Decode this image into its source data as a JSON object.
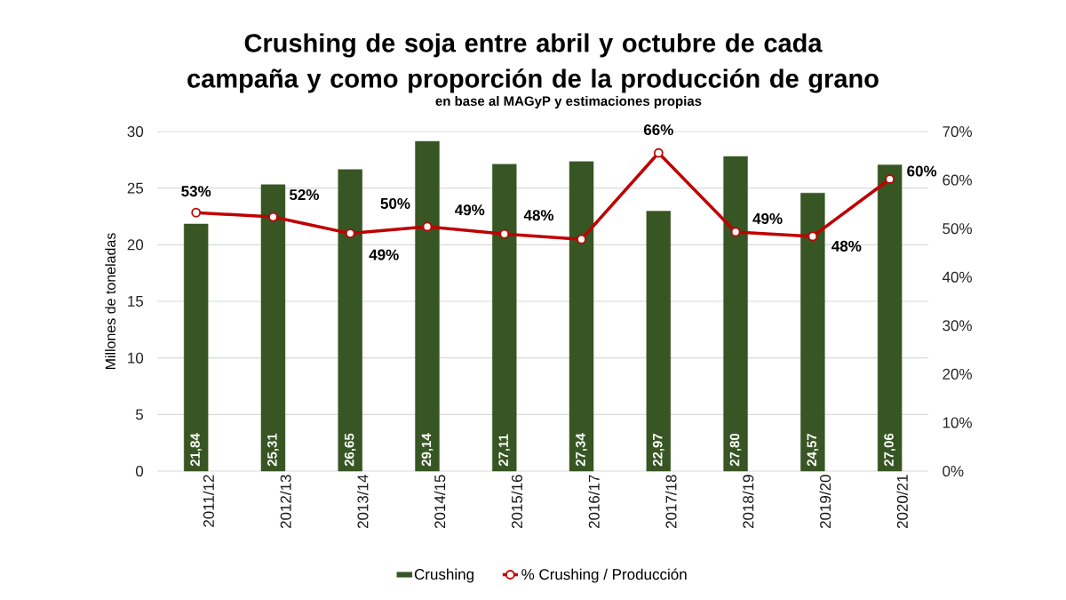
{
  "chart_data": {
    "type": "bar",
    "title": "Crushing de soja entre abril y octubre de cada campaña y como proporción de la producción de grano",
    "annotations": [
      "en base al MAGyP y estimaciones propias"
    ],
    "ylabel": "Millones de toneladas",
    "categories": [
      "2011/12",
      "2012/13",
      "2013/14",
      "2014/15",
      "2015/16",
      "2016/17",
      "2017/18",
      "2018/19",
      "2019/20",
      "2020/21"
    ],
    "series": [
      {
        "name": "Crushing",
        "color": "#375623",
        "values": [
          21.84,
          25.31,
          26.65,
          29.14,
          27.11,
          27.34,
          22.97,
          27.8,
          24.57,
          27.06
        ],
        "value_labels": [
          "21,84",
          "25,31",
          "26,65",
          "29,14",
          "27,11",
          "27,34",
          "22,97",
          "27,80",
          "24,57",
          "27,06"
        ]
      },
      {
        "name": "% Crushing / Producción",
        "type": "line",
        "axis": "y2",
        "color": "#c00000",
        "marker": "circle",
        "values": [
          53.3,
          52.4,
          49.0,
          50.4,
          48.9,
          47.8,
          65.6,
          49.3,
          48.4,
          60.2
        ],
        "value_labels": [
          "53%",
          "52%",
          "49%",
          "50%",
          "49%",
          "48%",
          "66%",
          "49%",
          "48%",
          "60%"
        ]
      }
    ],
    "ylim": [
      0,
      30
    ],
    "yticks": [
      0,
      5,
      10,
      15,
      20,
      25,
      30
    ],
    "y2lim": [
      0,
      70
    ],
    "y2ticks": [
      {
        "value": 0,
        "label": "0%"
      },
      {
        "value": 10,
        "label": "10%"
      },
      {
        "value": 20,
        "label": "20%"
      },
      {
        "value": 30,
        "label": "30%"
      },
      {
        "value": 40,
        "label": "40%"
      },
      {
        "value": 50,
        "label": "50%"
      },
      {
        "value": 60,
        "label": "60%"
      },
      {
        "value": 70,
        "label": "70%"
      }
    ],
    "grid": "y",
    "legend": "bottom"
  }
}
